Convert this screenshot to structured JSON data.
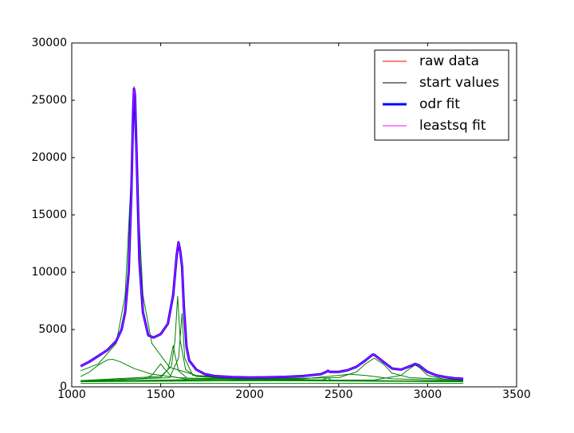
{
  "chart_data": {
    "type": "line",
    "x": [
      1050,
      1100,
      1150,
      1200,
      1250,
      1280,
      1300,
      1320,
      1335,
      1345,
      1350,
      1355,
      1365,
      1380,
      1400,
      1430,
      1460,
      1500,
      1540,
      1570,
      1590,
      1600,
      1610,
      1620,
      1630,
      1645,
      1660,
      1700,
      1750,
      1800,
      1900,
      2000,
      2100,
      2200,
      2300,
      2400,
      2430,
      2440,
      2450,
      2500,
      2550,
      2600,
      2650,
      2690,
      2700,
      2750,
      2800,
      2850,
      2900,
      2930,
      2950,
      3000,
      3050,
      3100,
      3150,
      3200
    ],
    "series": [
      {
        "name": "raw data",
        "color": "#ff0000",
        "width": 1,
        "values": [
          1780,
          2210,
          2690,
          3220,
          3980,
          5020,
          6480,
          10100,
          17100,
          24200,
          26200,
          25600,
          20100,
          11000,
          6450,
          4480,
          4280,
          4620,
          5480,
          8050,
          11600,
          12700,
          11900,
          10500,
          7000,
          3480,
          2310,
          1490,
          1110,
          940,
          860,
          830,
          820,
          880,
          940,
          1110,
          1310,
          1480,
          1290,
          1310,
          1440,
          1760,
          2310,
          2820,
          2790,
          2190,
          1610,
          1490,
          1810,
          2010,
          1890,
          1310,
          990,
          860,
          740,
          710
        ]
      },
      {
        "name": "start values",
        "color": "#000000",
        "width": 1,
        "values": [
          1800,
          2200,
          2700,
          3200,
          4000,
          5000,
          6500,
          10000,
          17000,
          24000,
          26000,
          25500,
          20000,
          11000,
          6500,
          4500,
          4300,
          4600,
          5500,
          8000,
          11500,
          12600,
          11800,
          10500,
          7000,
          3500,
          2300,
          1500,
          1100,
          950,
          850,
          820,
          830,
          870,
          950,
          1100,
          1300,
          1400,
          1300,
          1300,
          1450,
          1750,
          2300,
          2800,
          2800,
          2200,
          1600,
          1500,
          1800,
          2000,
          1900,
          1300,
          1000,
          850,
          750,
          700
        ]
      },
      {
        "name": "odr fit",
        "color": "#0000ff",
        "width": 3,
        "values": [
          1800,
          2200,
          2700,
          3200,
          4000,
          5000,
          6500,
          10000,
          17000,
          24000,
          26000,
          25500,
          20000,
          11000,
          6500,
          4500,
          4300,
          4600,
          5500,
          8000,
          11500,
          12600,
          11800,
          10500,
          7000,
          3500,
          2300,
          1500,
          1100,
          950,
          850,
          820,
          830,
          870,
          950,
          1100,
          1300,
          1400,
          1300,
          1300,
          1450,
          1750,
          2300,
          2800,
          2800,
          2200,
          1600,
          1500,
          1800,
          2000,
          1900,
          1300,
          1000,
          850,
          750,
          700
        ]
      },
      {
        "name": "leastsq fit",
        "color": "#ff00ff",
        "width": 1,
        "values": [
          1800,
          2200,
          2700,
          3200,
          4000,
          5000,
          6500,
          10000,
          17000,
          24000,
          26000,
          25500,
          20000,
          11000,
          6500,
          4500,
          4300,
          4600,
          5500,
          8000,
          11500,
          12600,
          11800,
          10500,
          7000,
          3500,
          2300,
          1500,
          1100,
          950,
          850,
          820,
          830,
          870,
          950,
          1100,
          1300,
          1400,
          1300,
          1300,
          1450,
          1750,
          2300,
          2800,
          2800,
          2200,
          1600,
          1500,
          1800,
          2000,
          1900,
          1300,
          1000,
          850,
          750,
          700
        ]
      },
      {
        "color": "#008000",
        "width": 1,
        "x": [
          1050,
          1150,
          1250,
          1300,
          1330,
          1350,
          1370,
          1400,
          1450,
          1550,
          1700,
          2000,
          2500,
          3200
        ],
        "values": [
          1400,
          2000,
          3800,
          8000,
          17000,
          24500,
          17000,
          8000,
          3800,
          1700,
          1000,
          700,
          550,
          450
        ]
      },
      {
        "color": "#008000",
        "width": 1,
        "x": [
          1050,
          1100,
          1150,
          1200,
          1230,
          1270,
          1350,
          1450,
          1600,
          2000,
          3200
        ],
        "values": [
          900,
          1300,
          1900,
          2350,
          2400,
          2200,
          1600,
          1100,
          800,
          550,
          450
        ]
      },
      {
        "color": "#008000",
        "width": 1,
        "x": [
          1050,
          1400,
          1450,
          1480,
          1500,
          1520,
          1560,
          1650,
          3200
        ],
        "values": [
          500,
          700,
          1000,
          1600,
          2000,
          1600,
          900,
          650,
          450
        ]
      },
      {
        "color": "#008000",
        "width": 1,
        "x": [
          1050,
          1500,
          1540,
          1560,
          1570,
          1580,
          1600,
          1650,
          3200
        ],
        "values": [
          500,
          800,
          1500,
          2800,
          3600,
          2800,
          1400,
          750,
          450
        ]
      },
      {
        "color": "#008000",
        "width": 1,
        "x": [
          1050,
          1500,
          1560,
          1580,
          1595,
          1610,
          1640,
          1700,
          2000,
          3200
        ],
        "values": [
          550,
          900,
          1800,
          4000,
          7900,
          4000,
          1500,
          900,
          600,
          450
        ]
      },
      {
        "color": "#008000",
        "width": 1,
        "x": [
          1050,
          1550,
          1600,
          1620,
          1635,
          1680,
          2000,
          3200
        ],
        "values": [
          500,
          800,
          2500,
          6400,
          2500,
          1000,
          600,
          450
        ]
      },
      {
        "color": "#008000",
        "width": 1,
        "x": [
          1050,
          2400,
          2440,
          2460,
          3200
        ],
        "values": [
          500,
          550,
          800,
          550,
          500
        ]
      },
      {
        "color": "#008000",
        "width": 1,
        "x": [
          1050,
          2300,
          2500,
          2560,
          2650,
          2800,
          3200
        ],
        "values": [
          500,
          700,
          1000,
          1100,
          1000,
          700,
          550
        ]
      },
      {
        "color": "#008000",
        "width": 1,
        "x": [
          1050,
          2500,
          2600,
          2650,
          2700,
          2750,
          2800,
          2900,
          3200
        ],
        "values": [
          500,
          800,
          1300,
          2000,
          2500,
          2000,
          1200,
          800,
          600
        ]
      },
      {
        "color": "#008000",
        "width": 1,
        "x": [
          1050,
          2700,
          2850,
          2900,
          2930,
          2960,
          3000,
          3100,
          3200
        ],
        "values": [
          450,
          600,
          1000,
          1600,
          1900,
          1600,
          1000,
          650,
          550
        ]
      },
      {
        "color": "#008000",
        "width": 1,
        "x": [
          1050,
          3200
        ],
        "values": [
          300,
          300
        ]
      }
    ],
    "xlim": [
      1000,
      3500
    ],
    "xticks": [
      1000,
      1500,
      2000,
      2500,
      3000,
      3500
    ],
    "ylim": [
      0,
      30000
    ],
    "yticks": [
      0,
      5000,
      10000,
      15000,
      20000,
      25000,
      30000
    ],
    "legend": "upper right"
  }
}
